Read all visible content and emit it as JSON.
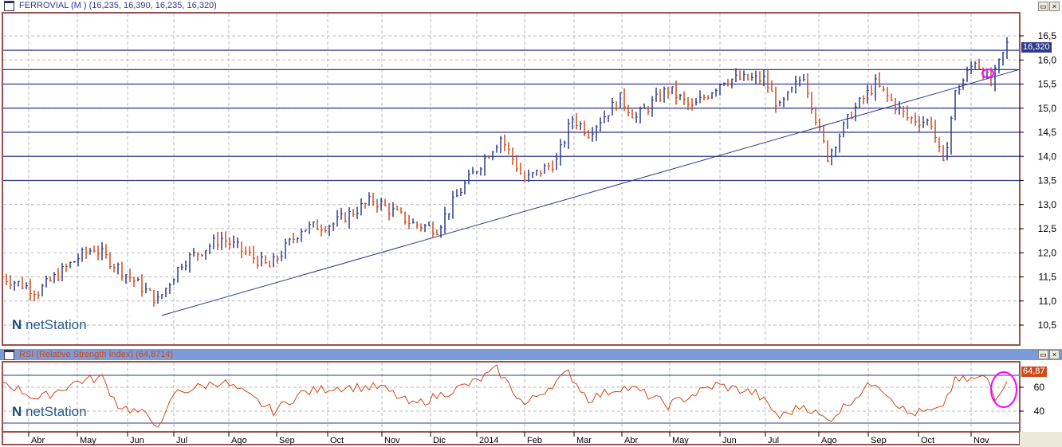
{
  "main_window": {
    "title": "FERROVIAL (M ) (16,235, 16,390, 16,235, 16,320)",
    "last_price": "16,320",
    "logo": "netStation",
    "maximize_label": "▭",
    "close_label": "×"
  },
  "rsi_window": {
    "title": "RSI (Relative Strength Index) (64,8714)",
    "last_value": "64,87",
    "logo": "netStation",
    "maximize_label": "▭",
    "close_label": "×"
  },
  "colors": {
    "up": "#2e3a8c",
    "down": "#d04a1a",
    "rsi": "#d04a1a",
    "hline": "#2e3a8c",
    "highlight": "#ff00ff",
    "frame": "#a05050"
  },
  "chart_data": [
    {
      "type": "bar",
      "title": "FERROVIAL (M )",
      "ylim": [
        10.3,
        16.8
      ],
      "yticks": [
        "16,5",
        "16,0",
        "15,5",
        "15,0",
        "14,5",
        "14,0",
        "13,5",
        "13,0",
        "12,5",
        "12,0",
        "11,5",
        "11,0",
        "10,5"
      ],
      "ytick_values": [
        16.5,
        16,
        15.5,
        15,
        14.5,
        14,
        13.5,
        13,
        12.5,
        12,
        11.5,
        11,
        10.5
      ],
      "horizontal_levels": [
        16.2,
        15.8,
        15.5,
        15.0,
        14.5,
        14.0,
        13.5
      ],
      "trendline": {
        "from": [
          40,
          10.7
        ],
        "to": [
          255,
          15.8
        ]
      },
      "close_keypoints": [
        [
          0,
          11.5
        ],
        [
          9,
          11.2
        ],
        [
          19,
          11.9
        ],
        [
          23,
          12.1
        ],
        [
          29,
          11.7
        ],
        [
          39,
          11.0
        ],
        [
          45,
          11.8
        ],
        [
          55,
          12.3
        ],
        [
          67,
          11.7
        ],
        [
          75,
          12.5
        ],
        [
          83,
          12.6
        ],
        [
          93,
          13.1
        ],
        [
          103,
          12.6
        ],
        [
          109,
          12.5
        ],
        [
          115,
          13.3
        ],
        [
          125,
          14.4
        ],
        [
          131,
          13.5
        ],
        [
          139,
          13.9
        ],
        [
          143,
          14.8
        ],
        [
          147,
          14.5
        ],
        [
          155,
          15.2
        ],
        [
          159,
          14.8
        ],
        [
          167,
          15.4
        ],
        [
          173,
          15.0
        ],
        [
          181,
          15.6
        ],
        [
          191,
          15.6
        ],
        [
          195,
          15.0
        ],
        [
          201,
          15.7
        ],
        [
          205,
          14.5
        ],
        [
          207,
          14.0
        ],
        [
          213,
          14.9
        ],
        [
          219,
          15.5
        ],
        [
          227,
          14.8
        ],
        [
          233,
          14.7
        ],
        [
          236,
          13.8
        ],
        [
          239,
          15.3
        ],
        [
          244,
          16.0
        ],
        [
          248,
          15.5
        ],
        [
          252,
          16.32
        ]
      ],
      "xticks": [
        "Abr",
        "May",
        "Jun",
        "Jul",
        "Ago",
        "Sep",
        "Oct",
        "Nov",
        "Dic",
        "2014",
        "Feb",
        "Mar",
        "Abr",
        "May",
        "Jun",
        "Jul",
        "Ago",
        "Sep",
        "Oct",
        "Nov"
      ],
      "xtick_bars": [
        6.6,
        18.8,
        31.4,
        43,
        56.8,
        68.8,
        81.6,
        95.2,
        107.4,
        119,
        131,
        143.4,
        155.4,
        167.4,
        180,
        191.4,
        204.8,
        217.2,
        229.8,
        243
      ]
    },
    {
      "type": "line",
      "title": "RSI (Relative Strength Index)",
      "ylim": [
        20,
        80
      ],
      "yticks": [
        "60",
        "40"
      ],
      "ytick_values": [
        60,
        40
      ],
      "horizontal_levels": [
        70,
        30
      ],
      "keypoints": [
        [
          0,
          65
        ],
        [
          9,
          50
        ],
        [
          19,
          65
        ],
        [
          25,
          68
        ],
        [
          29,
          45
        ],
        [
          35,
          38
        ],
        [
          40,
          28
        ],
        [
          43,
          55
        ],
        [
          55,
          65
        ],
        [
          59,
          58
        ],
        [
          68,
          40
        ],
        [
          75,
          55
        ],
        [
          83,
          60
        ],
        [
          95,
          60
        ],
        [
          103,
          45
        ],
        [
          111,
          55
        ],
        [
          119,
          65
        ],
        [
          124,
          75
        ],
        [
          131,
          45
        ],
        [
          139,
          65
        ],
        [
          142,
          72
        ],
        [
          147,
          50
        ],
        [
          155,
          60
        ],
        [
          159,
          58
        ],
        [
          167,
          45
        ],
        [
          179,
          62
        ],
        [
          189,
          55
        ],
        [
          195,
          35
        ],
        [
          201,
          45
        ],
        [
          207,
          32
        ],
        [
          215,
          55
        ],
        [
          219,
          65
        ],
        [
          227,
          38
        ],
        [
          235,
          40
        ],
        [
          239,
          65
        ],
        [
          247,
          68
        ],
        [
          249,
          52
        ],
        [
          252,
          64.87
        ]
      ]
    }
  ]
}
